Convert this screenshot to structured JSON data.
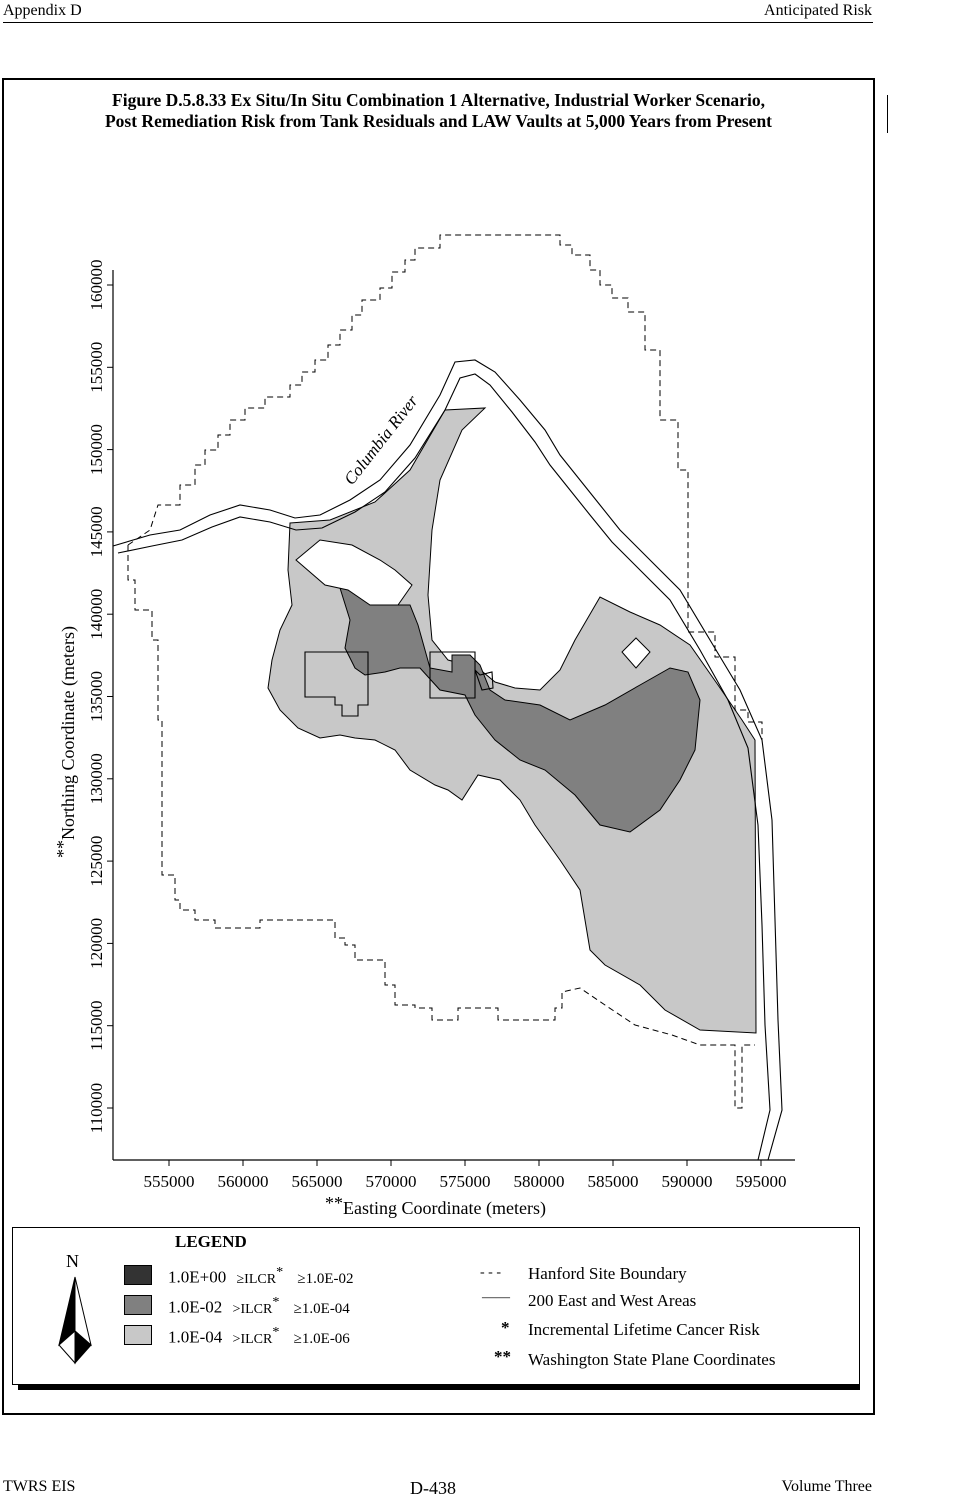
{
  "header": {
    "left": "Appendix D",
    "right": "Anticipated Risk"
  },
  "figure": {
    "title_line1": "Figure D.5.8.33  Ex Situ/In Situ Combination 1 Alternative, Industrial Worker Scenario,",
    "title_line2": "Post Remediation Risk from Tank Residuals and LAW Vaults at 5,000 Years from Present"
  },
  "map": {
    "river_label": "Columbia River",
    "x_axis_label": "Easting Coordinate (meters)",
    "x_axis_prefix": "**",
    "y_axis_label": "Northing Coordinate (meters)",
    "y_axis_prefix": "**",
    "x_ticks": [
      "555000",
      "560000",
      "565000",
      "570000",
      "575000",
      "580000",
      "585000",
      "590000",
      "595000"
    ],
    "y_ticks": [
      "110000",
      "115000",
      "120000",
      "125000",
      "130000",
      "135000",
      "140000",
      "145000",
      "150000",
      "155000",
      "160000"
    ],
    "colors": {
      "high": "#333333",
      "medium": "#808080",
      "low": "#c8c8c8"
    }
  },
  "legend": {
    "title": "LEGEND",
    "north": "N",
    "risk_classes": [
      {
        "upper": "1.0E+00",
        "op1": "≥ILCR",
        "star": "*",
        "op2": "≥1.0E-02",
        "color": "#333333"
      },
      {
        "upper": "1.0E-02",
        "op1": ">ILCR",
        "star": "*",
        "op2": "≥1.0E-04",
        "color": "#808080"
      },
      {
        "upper": "1.0E-04",
        "op1": ">ILCR",
        "star": "*",
        "op2": "≥1.0E-06",
        "color": "#c8c8c8"
      }
    ],
    "keys": [
      {
        "symbol": "- - -",
        "label": "Hanford Site Boundary"
      },
      {
        "symbol": "——",
        "label": "200 East and West Areas"
      },
      {
        "symbol": "*",
        "label": "Incremental Lifetime Cancer Risk"
      },
      {
        "symbol": "**",
        "label": "Washington State Plane Coordinates"
      }
    ]
  },
  "footer": {
    "left": "TWRS EIS",
    "center": "D-438",
    "right": "Volume Three"
  }
}
